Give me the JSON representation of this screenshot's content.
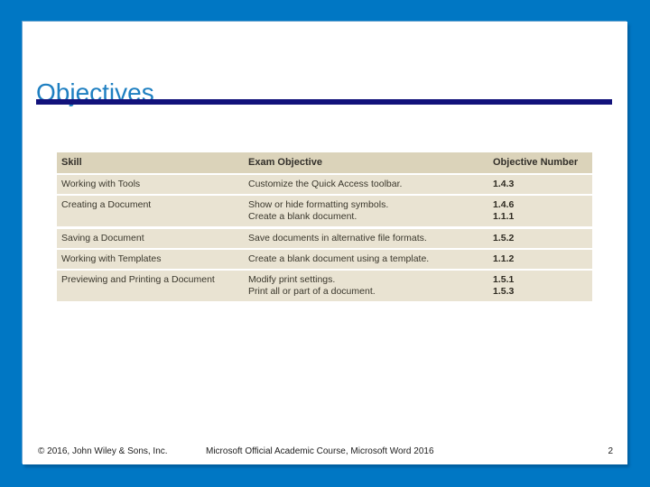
{
  "slide": {
    "title": "Objectives"
  },
  "table": {
    "headers": {
      "skill": "Skill",
      "exam_objective": "Exam Objective",
      "objective_number": "Objective Number"
    },
    "rows": [
      {
        "skill": "Working with Tools",
        "objectives": [
          "Customize the Quick Access toolbar."
        ],
        "numbers": [
          "1.4.3"
        ]
      },
      {
        "skill": "Creating a Document",
        "objectives": [
          "Show or hide formatting symbols.",
          "Create a blank document."
        ],
        "numbers": [
          "1.4.6",
          "1.1.1"
        ]
      },
      {
        "skill": "Saving a Document",
        "objectives": [
          "Save documents in alternative file formats."
        ],
        "numbers": [
          "1.5.2"
        ]
      },
      {
        "skill": "Working with Templates",
        "objectives": [
          "Create a blank document using a template."
        ],
        "numbers": [
          "1.1.2"
        ]
      },
      {
        "skill": "Previewing and Printing a Document",
        "objectives": [
          "Modify print settings.",
          "Print all or part of a document."
        ],
        "numbers": [
          "1.5.1",
          "1.5.3"
        ]
      }
    ]
  },
  "footer": {
    "copyright": "© 2016, John Wiley & Sons, Inc.",
    "course": "Microsoft Official Academic Course, Microsoft Word 2016",
    "page_number": "2"
  },
  "colors": {
    "border_blue": "#0077C4",
    "title_blue": "#1E7FC1",
    "rule_navy": "#12127B",
    "table_header_bg": "#DBD3BA",
    "table_row_bg": "#E9E3D2"
  }
}
